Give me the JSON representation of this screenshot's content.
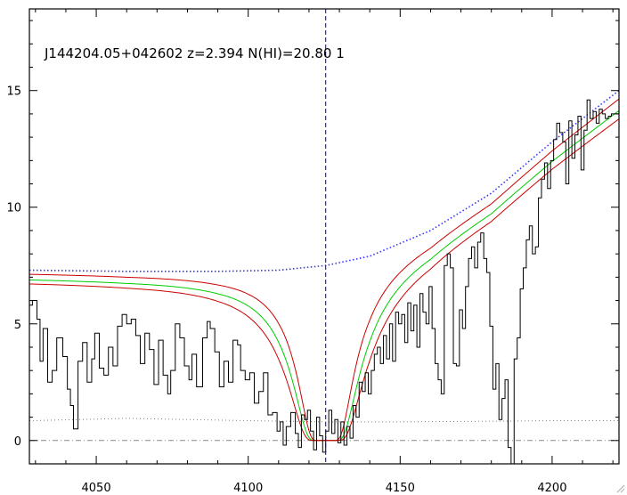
{
  "chart_data": {
    "type": "line",
    "title": "J144204.05+042602 z=2.394 N(HI)=20.80 1",
    "xlabel": "",
    "ylabel": "",
    "xlim": [
      4028,
      4222
    ],
    "ylim": [
      -1,
      18.5
    ],
    "x_ticks": [
      4050,
      4100,
      4150,
      4200
    ],
    "y_ticks": [
      0,
      5,
      10,
      15
    ],
    "grid": false,
    "vline_x": 4125.5,
    "zero_line_y": 0,
    "colors": {
      "flux": "#000000",
      "model": "#00cc00",
      "model_bounds": "#cc0000",
      "continuum": "#3333ff",
      "error": "#cc6600",
      "vline": "#0000aa",
      "zero_line": "#888888"
    },
    "model": {
      "center": 4125.5,
      "cont_ref_x": 4125.5,
      "cont_ref_y": 7.5,
      "continuum_points": [
        [
          4028,
          7.3
        ],
        [
          4060,
          7.25
        ],
        [
          4090,
          7.25
        ],
        [
          4110,
          7.3
        ],
        [
          4125.5,
          7.5
        ],
        [
          4140,
          7.9
        ],
        [
          4160,
          9.0
        ],
        [
          4180,
          10.6
        ],
        [
          4200,
          12.8
        ],
        [
          4222,
          15.0
        ]
      ],
      "curves": [
        {
          "name": "central",
          "width": 11.0,
          "scale": 0.955
        },
        {
          "name": "upper",
          "width": 9.3,
          "scale": 0.985
        },
        {
          "name": "lower",
          "width": 12.7,
          "scale": 0.935
        }
      ]
    },
    "error_points": [
      [
        4028,
        0.85
      ],
      [
        4045,
        0.9
      ],
      [
        4060,
        0.95
      ],
      [
        4080,
        0.9
      ],
      [
        4100,
        0.85
      ],
      [
        4125,
        0.8
      ],
      [
        4150,
        0.8
      ],
      [
        4175,
        0.82
      ],
      [
        4200,
        0.85
      ],
      [
        4222,
        0.85
      ]
    ],
    "flux_points": [
      [
        4028,
        5.8
      ],
      [
        4030,
        6.0
      ],
      [
        4031,
        5.2
      ],
      [
        4032,
        3.4
      ],
      [
        4033,
        4.8
      ],
      [
        4035,
        2.5
      ],
      [
        4036,
        3.0
      ],
      [
        4038,
        4.4
      ],
      [
        4040,
        3.6
      ],
      [
        4041,
        2.2
      ],
      [
        4042,
        1.5
      ],
      [
        4043,
        0.5
      ],
      [
        4045,
        3.4
      ],
      [
        4046,
        4.2
      ],
      [
        4048,
        2.5
      ],
      [
        4049,
        3.5
      ],
      [
        4050,
        4.6
      ],
      [
        4052,
        3.1
      ],
      [
        4053,
        2.8
      ],
      [
        4055,
        4.0
      ],
      [
        4056,
        3.2
      ],
      [
        4058,
        4.9
      ],
      [
        4059,
        5.4
      ],
      [
        4061,
        5.0
      ],
      [
        4062,
        5.2
      ],
      [
        4064,
        4.5
      ],
      [
        4065,
        3.3
      ],
      [
        4067,
        4.6
      ],
      [
        4068,
        3.9
      ],
      [
        4070,
        2.4
      ],
      [
        4071,
        4.3
      ],
      [
        4073,
        2.8
      ],
      [
        4074,
        2.0
      ],
      [
        4075,
        3.0
      ],
      [
        4077,
        5.0
      ],
      [
        4078,
        4.4
      ],
      [
        4080,
        3.2
      ],
      [
        4081,
        2.6
      ],
      [
        4082,
        3.7
      ],
      [
        4084,
        2.3
      ],
      [
        4086,
        4.4
      ],
      [
        4087,
        5.1
      ],
      [
        4088,
        4.8
      ],
      [
        4090,
        3.8
      ],
      [
        4091,
        2.3
      ],
      [
        4093,
        3.4
      ],
      [
        4094,
        2.5
      ],
      [
        4096,
        4.3
      ],
      [
        4097,
        4.1
      ],
      [
        4098,
        3.0
      ],
      [
        4100,
        2.6
      ],
      [
        4101,
        2.9
      ],
      [
        4103,
        1.6
      ],
      [
        4104,
        2.1
      ],
      [
        4106,
        2.9
      ],
      [
        4107,
        1.1
      ],
      [
        4109,
        1.2
      ],
      [
        4110,
        0.4
      ],
      [
        4111,
        0.8
      ],
      [
        4112,
        -0.2
      ],
      [
        4113,
        0.6
      ],
      [
        4115,
        1.2
      ],
      [
        4116,
        0.3
      ],
      [
        4117,
        -0.3
      ],
      [
        4118,
        1.1
      ],
      [
        4119,
        0.9
      ],
      [
        4120,
        1.3
      ],
      [
        4121,
        0.4
      ],
      [
        4122,
        -0.4
      ],
      [
        4123,
        1.0
      ],
      [
        4124,
        0.2
      ],
      [
        4125,
        -0.5
      ],
      [
        4126,
        0.4
      ],
      [
        4127,
        1.3
      ],
      [
        4128,
        0.3
      ],
      [
        4129,
        0.9
      ],
      [
        4130,
        -0.1
      ],
      [
        4131,
        0.8
      ],
      [
        4132,
        -0.2
      ],
      [
        4133,
        0.6
      ],
      [
        4134,
        0.1
      ],
      [
        4135,
        1.5
      ],
      [
        4136,
        1.0
      ],
      [
        4137,
        2.5
      ],
      [
        4138,
        2.1
      ],
      [
        4139,
        2.9
      ],
      [
        4140,
        2.0
      ],
      [
        4141,
        3.0
      ],
      [
        4142,
        3.7
      ],
      [
        4143,
        4.0
      ],
      [
        4144,
        3.3
      ],
      [
        4145,
        4.5
      ],
      [
        4146,
        3.5
      ],
      [
        4147,
        5.0
      ],
      [
        4148,
        3.4
      ],
      [
        4149,
        5.5
      ],
      [
        4150,
        5.0
      ],
      [
        4151,
        5.4
      ],
      [
        4152,
        4.2
      ],
      [
        4153,
        5.9
      ],
      [
        4154,
        4.7
      ],
      [
        4155,
        5.8
      ],
      [
        4156,
        4.0
      ],
      [
        4157,
        6.3
      ],
      [
        4158,
        5.5
      ],
      [
        4159,
        5.0
      ],
      [
        4160,
        6.6
      ],
      [
        4161,
        4.8
      ],
      [
        4162,
        3.3
      ],
      [
        4163,
        2.6
      ],
      [
        4164,
        2.0
      ],
      [
        4165,
        7.5
      ],
      [
        4166,
        8.0
      ],
      [
        4167,
        7.4
      ],
      [
        4168,
        3.3
      ],
      [
        4169,
        3.2
      ],
      [
        4170,
        5.6
      ],
      [
        4171,
        4.8
      ],
      [
        4172,
        6.6
      ],
      [
        4173,
        7.8
      ],
      [
        4174,
        8.3
      ],
      [
        4175,
        7.4
      ],
      [
        4176,
        8.5
      ],
      [
        4177,
        8.9
      ],
      [
        4178,
        7.8
      ],
      [
        4179,
        7.2
      ],
      [
        4180,
        4.9
      ],
      [
        4181,
        2.2
      ],
      [
        4182,
        3.3
      ],
      [
        4183,
        0.9
      ],
      [
        4184,
        1.8
      ],
      [
        4185,
        2.6
      ],
      [
        4186,
        -0.3
      ],
      [
        4187,
        -1.0
      ],
      [
        4188,
        3.5
      ],
      [
        4189,
        4.4
      ],
      [
        4190,
        6.5
      ],
      [
        4191,
        7.4
      ],
      [
        4192,
        8.6
      ],
      [
        4193,
        9.2
      ],
      [
        4194,
        8.0
      ],
      [
        4195,
        8.3
      ],
      [
        4196,
        10.4
      ],
      [
        4197,
        11.2
      ],
      [
        4198,
        11.9
      ],
      [
        4199,
        10.8
      ],
      [
        4200,
        12.0
      ],
      [
        4201,
        12.9
      ],
      [
        4202,
        13.6
      ],
      [
        4203,
        13.2
      ],
      [
        4204,
        12.8
      ],
      [
        4205,
        11.0
      ],
      [
        4206,
        13.7
      ],
      [
        4207,
        12.1
      ],
      [
        4208,
        13.1
      ],
      [
        4209,
        13.9
      ],
      [
        4210,
        11.6
      ],
      [
        4211,
        13.3
      ],
      [
        4212,
        14.6
      ],
      [
        4213,
        13.8
      ],
      [
        4214,
        14.1
      ],
      [
        4215,
        13.6
      ],
      [
        4216,
        14.2
      ],
      [
        4217,
        14.0
      ],
      [
        4218,
        13.8
      ],
      [
        4219,
        13.9
      ],
      [
        4220,
        14.0
      ],
      [
        4222,
        14.0
      ]
    ]
  }
}
